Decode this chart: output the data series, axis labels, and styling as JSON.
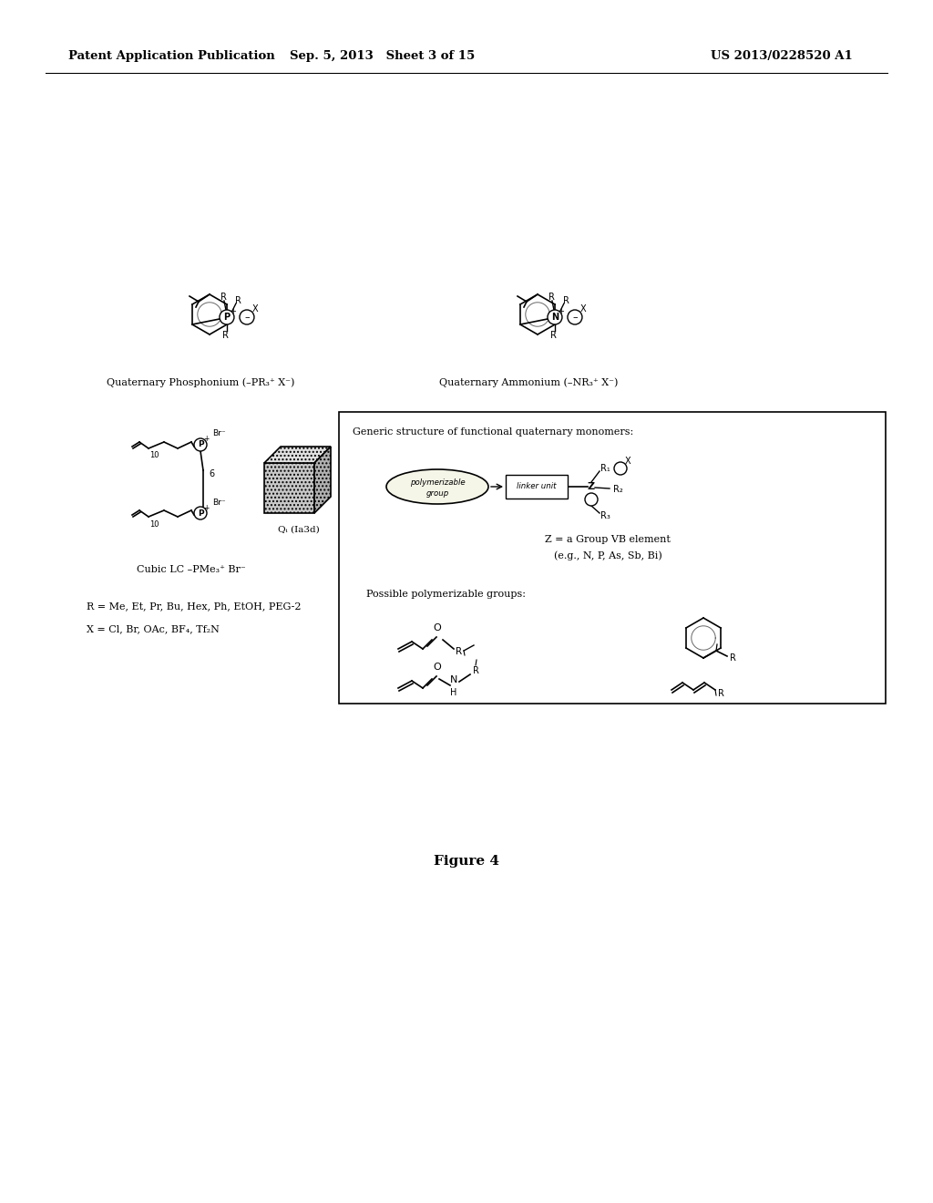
{
  "header_left": "Patent Application Publication",
  "header_mid": "Sep. 5, 2013   Sheet 3 of 15",
  "header_right": "US 2013/0228520 A1",
  "figure_label": "Figure 4",
  "label_phosphonium": "Quaternary Phosphonium (–PR₃⁺ X⁻)",
  "label_ammonium": "Quaternary Ammonium (–NR₃⁺ X⁻)",
  "label_cubic": "Cubic LC –PMe₃⁺ Br⁻",
  "label_qi": "Qᵢ (Ia3d)",
  "label_r": "R = Me, Et, Pr, Bu, Hex, Ph, EtOH, PEG-2",
  "label_x": "X = Cl, Br, OAc, BF₄, Tf₂N",
  "box_title": "Generic structure of functional quaternary monomers:",
  "box_z_label": "Z = a Group VB element",
  "box_z_sub": "(e.g., N, P, As, Sb, Bi)",
  "box_poly_label": "Possible polymerizable groups:",
  "bg_color": "#ffffff",
  "text_color": "#000000"
}
